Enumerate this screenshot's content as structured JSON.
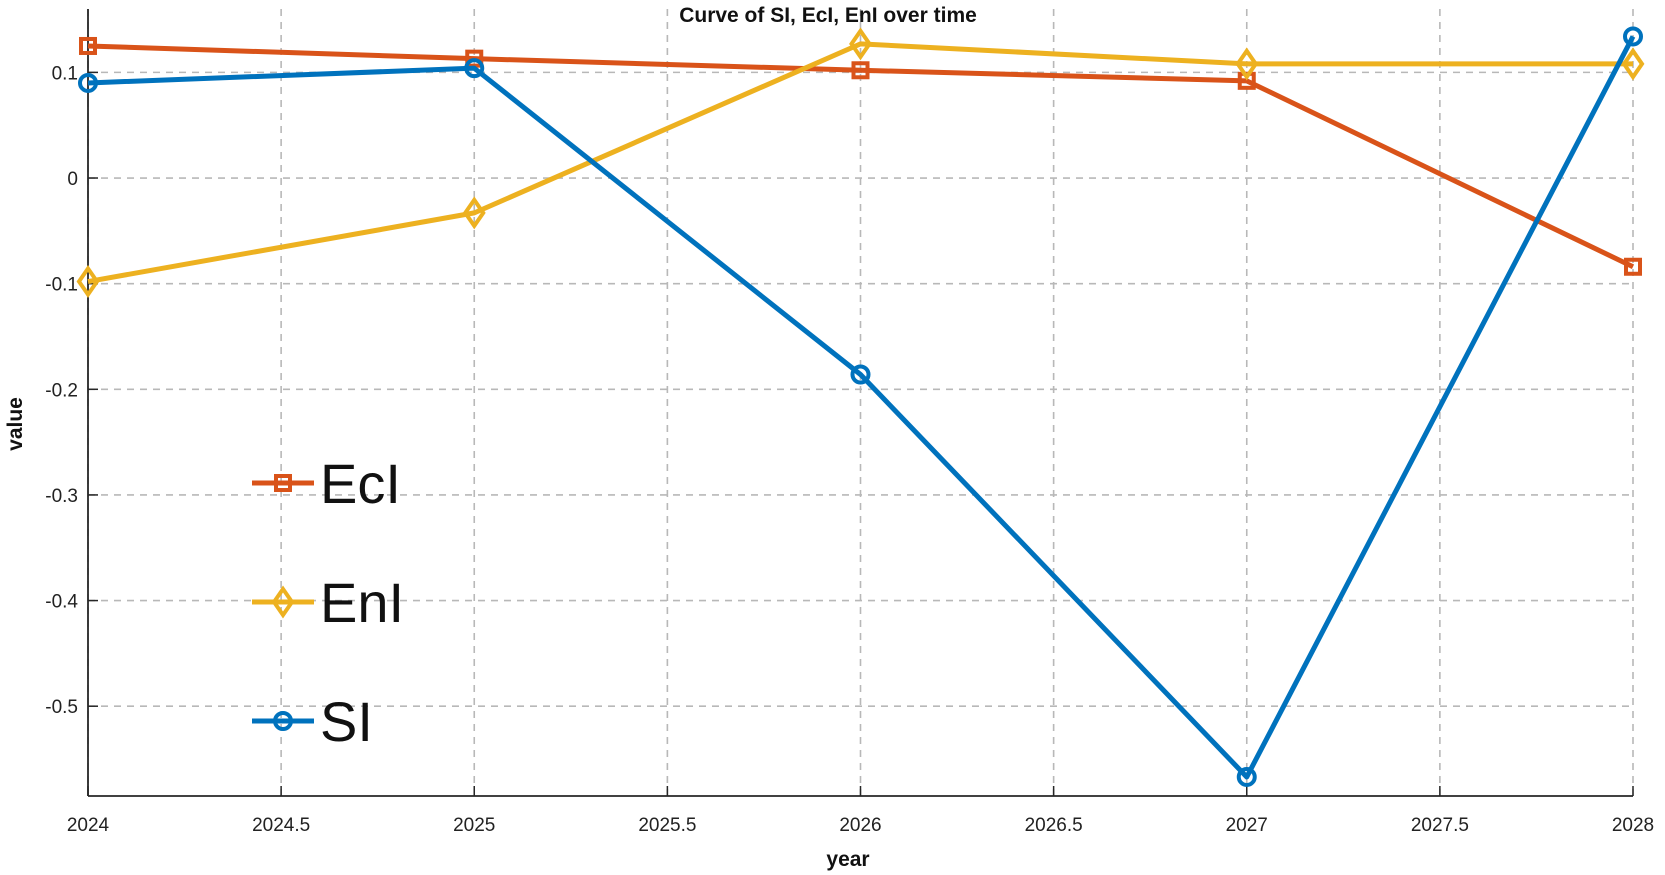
{
  "chart_data": {
    "type": "line",
    "title": "Curve of SI, EcI, EnI over time",
    "xlabel": "year",
    "ylabel": "value",
    "x": [
      2024,
      2025,
      2026,
      2027,
      2028
    ],
    "xlim": [
      2024,
      2028
    ],
    "ylim": [
      -0.585,
      0.16
    ],
    "xticks": [
      2024,
      2024.5,
      2025,
      2025.5,
      2026,
      2026.5,
      2027,
      2027.5,
      2028
    ],
    "xtick_labels": [
      "2024",
      "2024.5",
      "2025",
      "2025.5",
      "2026",
      "2026.5",
      "2027",
      "2027.5",
      "2028"
    ],
    "yticks": [
      0.1,
      0,
      -0.1,
      -0.2,
      -0.3,
      -0.4,
      -0.5
    ],
    "ytick_labels": [
      "0.1",
      "0",
      "-0.1",
      "-0.2",
      "-0.3",
      "-0.4",
      "-0.5"
    ],
    "grid": true,
    "legend_position": "lower-left",
    "series": [
      {
        "name": "EcI",
        "values": [
          0.125,
          0.113,
          0.102,
          0.092,
          -0.084
        ],
        "color": "#D95319",
        "marker": "square"
      },
      {
        "name": "EnI",
        "values": [
          -0.098,
          -0.033,
          0.127,
          0.108,
          0.108
        ],
        "color": "#EDB120",
        "marker": "diamond"
      },
      {
        "name": "SI",
        "values": [
          0.09,
          0.104,
          -0.186,
          -0.567,
          0.134
        ],
        "color": "#0072BD",
        "marker": "circle"
      }
    ]
  }
}
